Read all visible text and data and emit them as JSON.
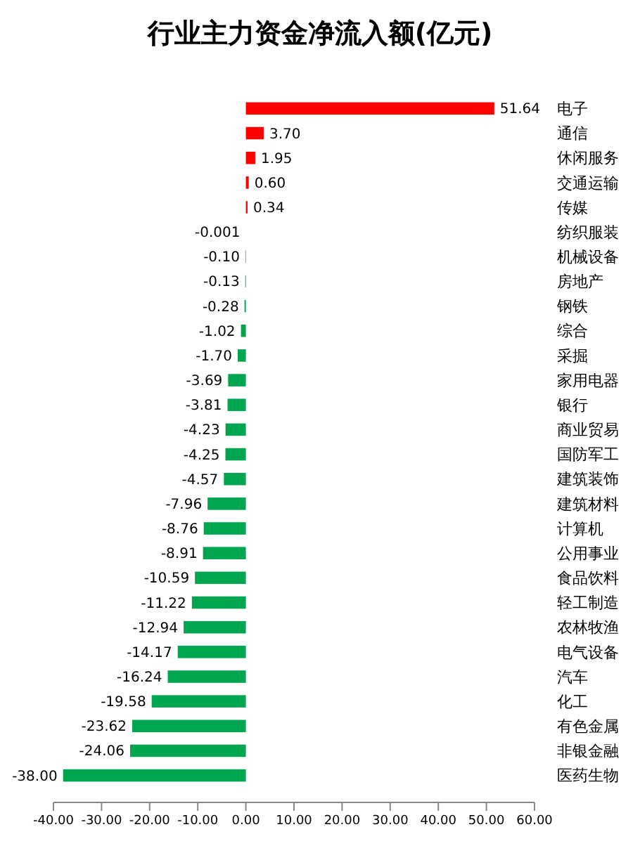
{
  "chart_data": {
    "type": "bar",
    "orientation": "horizontal",
    "title": "行业主力资金净流入额(亿元)",
    "categories": [
      "电子",
      "通信",
      "休闲服务",
      "交通运输",
      "传媒",
      "纺织服装",
      "机械设备",
      "房地产",
      "钢铁",
      "综合",
      "采掘",
      "家用电器",
      "银行",
      "商业贸易",
      "国防军工",
      "建筑装饰",
      "建筑材料",
      "计算机",
      "公用事业",
      "食品饮料",
      "轻工制造",
      "农林牧渔",
      "电气设备",
      "汽车",
      "化工",
      "有色金属",
      "非银金融",
      "医药生物"
    ],
    "values": [
      51.64,
      3.7,
      1.95,
      0.6,
      0.34,
      -0.001,
      -0.1,
      -0.13,
      -0.28,
      -1.02,
      -1.7,
      -3.69,
      -3.81,
      -4.23,
      -4.25,
      -4.57,
      -7.96,
      -8.76,
      -8.91,
      -10.59,
      -11.22,
      -12.94,
      -14.17,
      -16.24,
      -19.58,
      -23.62,
      -24.06,
      -38.0
    ],
    "value_labels": [
      "51.64",
      "3.70",
      "1.95",
      "0.60",
      "0.34",
      "-0.001",
      "-0.10",
      "-0.13",
      "-0.28",
      "-1.02",
      "-1.70",
      "-3.69",
      "-3.81",
      "-4.23",
      "-4.25",
      "-4.57",
      "-7.96",
      "-8.76",
      "-8.91",
      "-10.59",
      "-11.22",
      "-12.94",
      "-14.17",
      "-16.24",
      "-19.58",
      "-23.62",
      "-24.06",
      "-38.00"
    ],
    "colors": [
      "#ff0000",
      "#ff0000",
      "#ff0000",
      "#ff0000",
      "#ff0000",
      "#00a550",
      "#00a550",
      "#00a550",
      "#00a550",
      "#00a550",
      "#00a550",
      "#00a550",
      "#00a550",
      "#00a550",
      "#00a550",
      "#00a550",
      "#00a550",
      "#00a550",
      "#00a550",
      "#00a550",
      "#00a550",
      "#00a550",
      "#00a550",
      "#00a550",
      "#00a550",
      "#00a550",
      "#00a550",
      "#00a550"
    ],
    "xlim": [
      -40,
      60
    ],
    "xticks": [
      {
        "value": -40,
        "label": "-40.00"
      },
      {
        "value": -30,
        "label": "-30.00"
      },
      {
        "value": -20,
        "label": "-20.00"
      },
      {
        "value": -10,
        "label": "-10.00"
      },
      {
        "value": 0,
        "label": "0.00"
      },
      {
        "value": 10,
        "label": "10.00"
      },
      {
        "value": 20,
        "label": "20.00"
      },
      {
        "value": 30,
        "label": "30.00"
      },
      {
        "value": 40,
        "label": "40.00"
      },
      {
        "value": 50,
        "label": "50.00"
      },
      {
        "value": 60,
        "label": "60.00"
      }
    ],
    "grid": false
  }
}
